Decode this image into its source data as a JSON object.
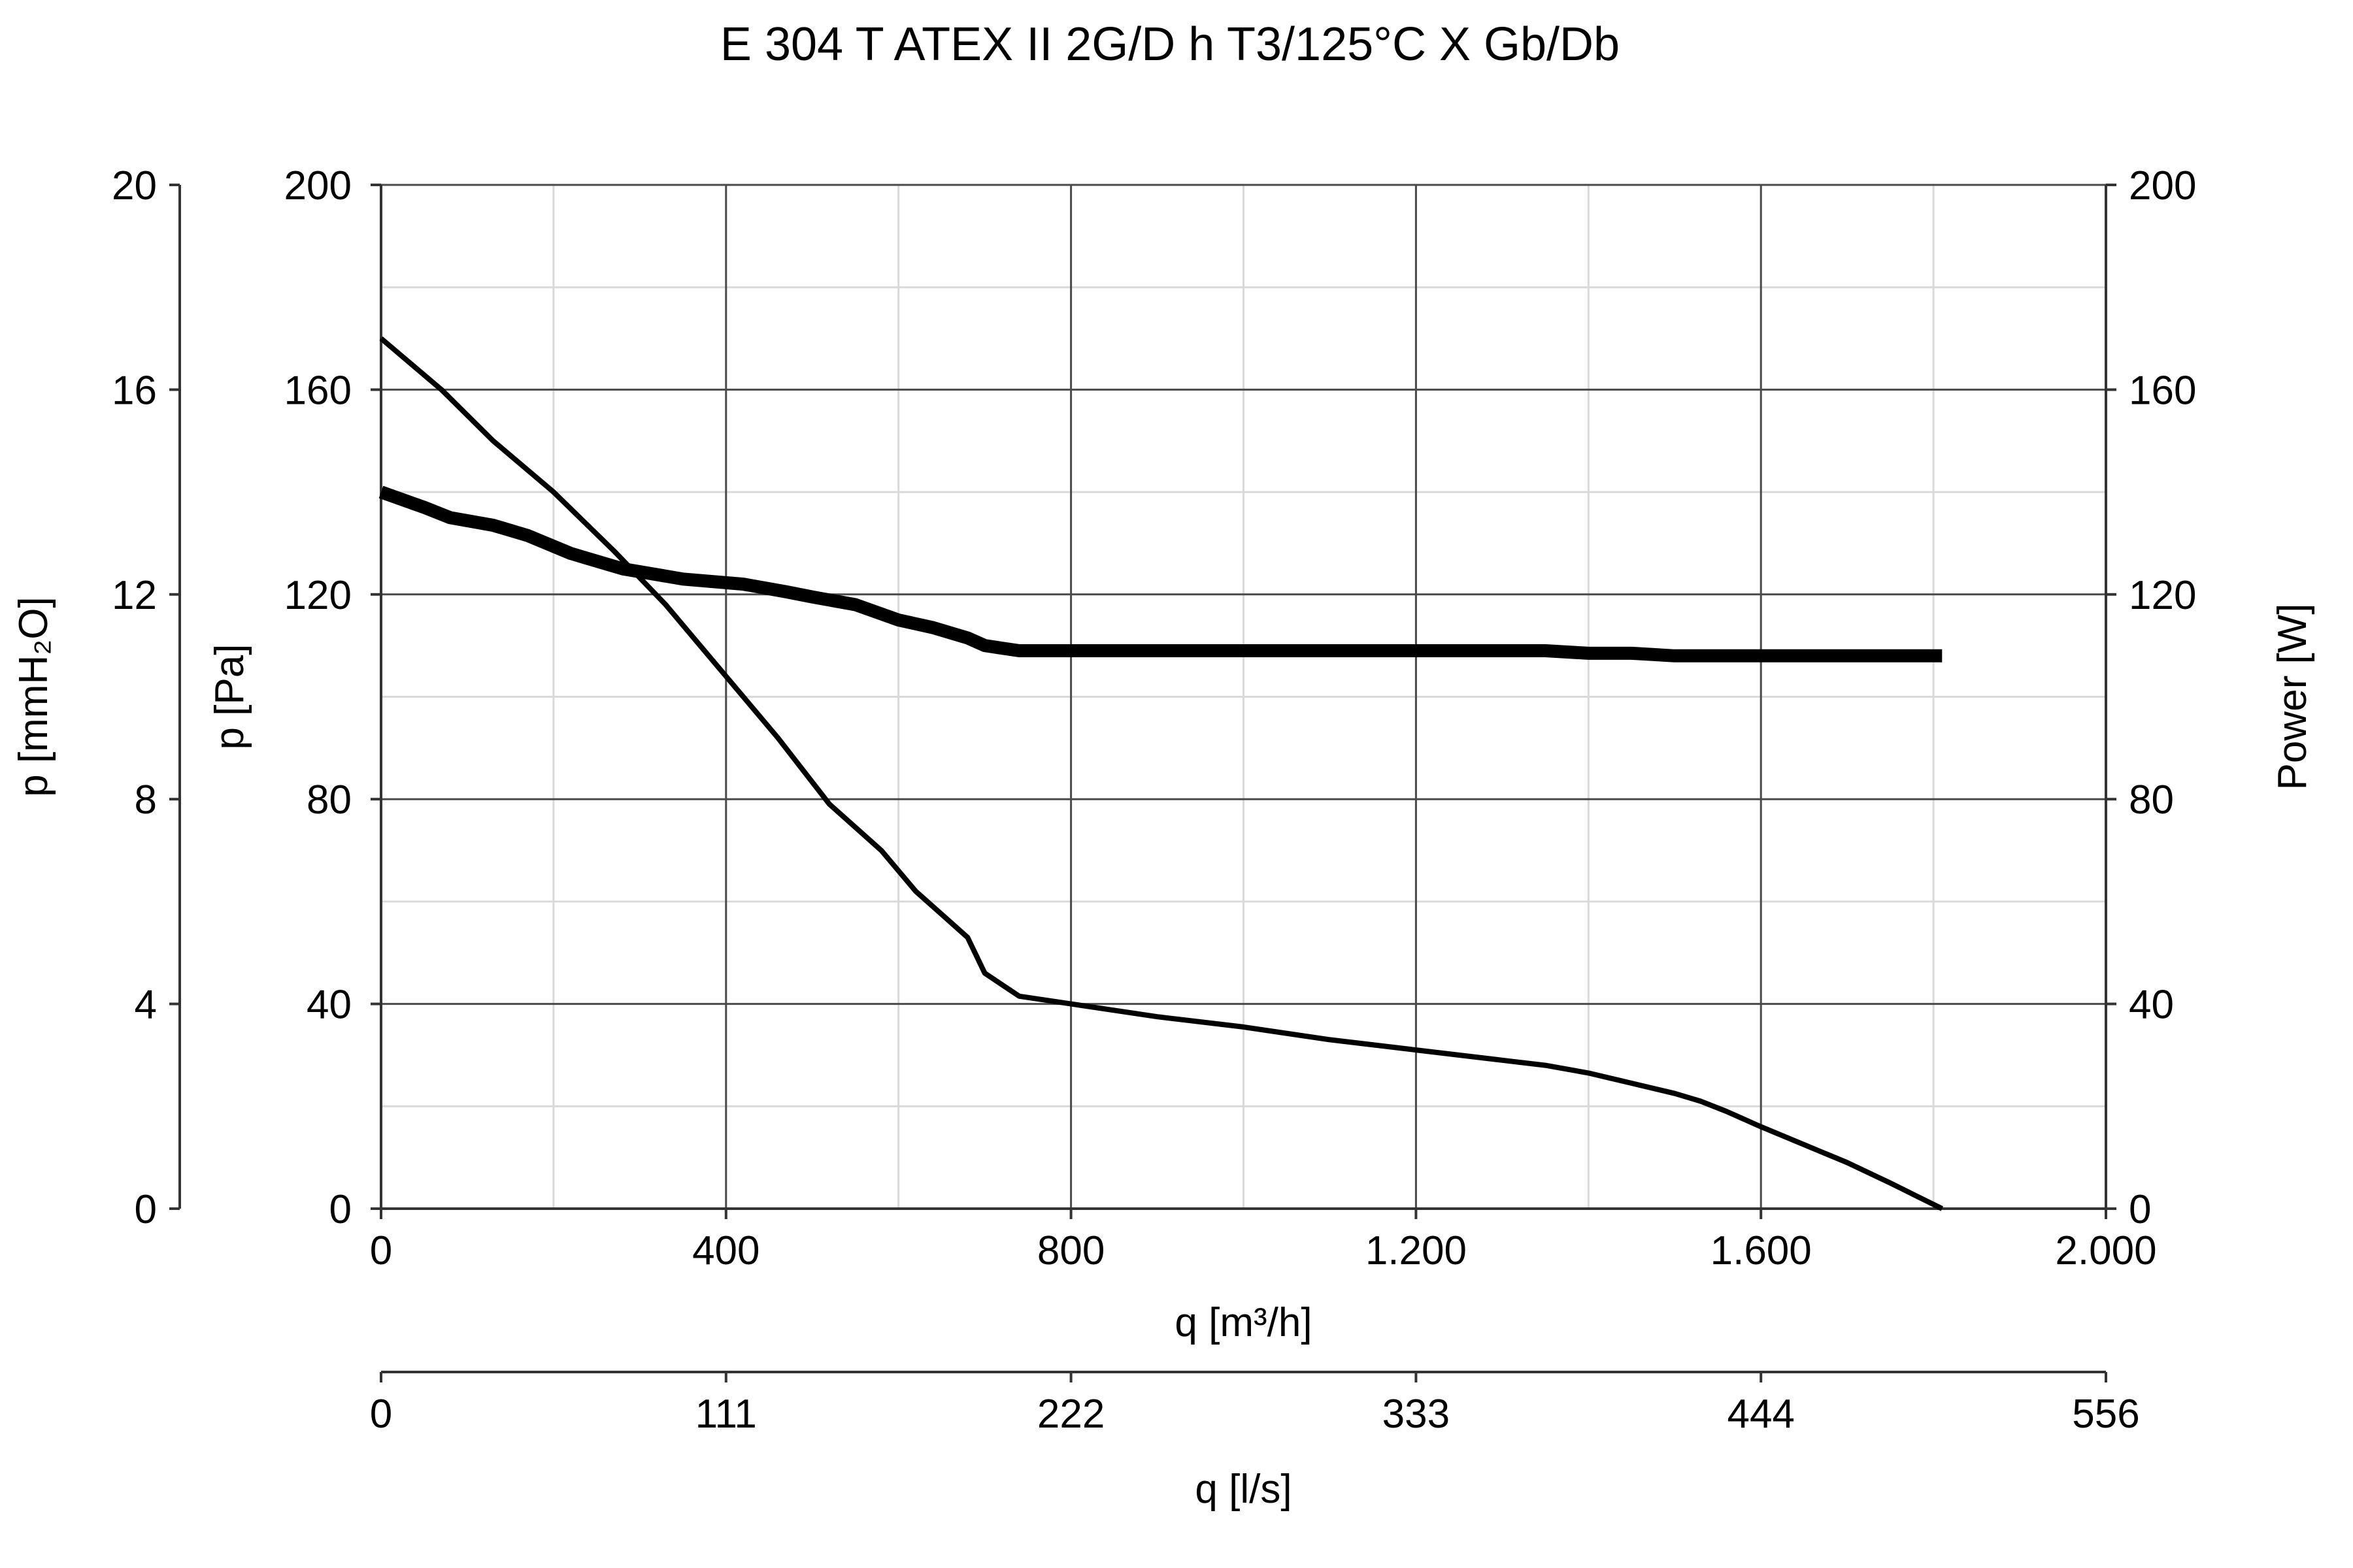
{
  "chart_data": {
    "type": "line",
    "title": "E 304 T ATEX II 2G/D h T3/125°C X Gb/Db",
    "xlabel": "q [m³/h]",
    "xlim": [
      0,
      2000
    ],
    "xticks": [
      0,
      400,
      800,
      1200,
      1600,
      2000
    ],
    "xtick_labels": [
      "0",
      "400",
      "800",
      "1.200",
      "1.600",
      "2.000"
    ],
    "x2label": "q [l/s]",
    "x2tick_labels": [
      "0",
      "111",
      "222",
      "333",
      "444",
      "556"
    ],
    "ylabel": "p [Pa]",
    "ylim": [
      0,
      200
    ],
    "yticks": [
      0,
      40,
      80,
      120,
      160,
      200
    ],
    "ytick_labels": [
      "0",
      "40",
      "80",
      "120",
      "160",
      "200"
    ],
    "y2label": "p [mmH₂O]",
    "y2tick_labels": [
      "0",
      "4",
      "8",
      "12",
      "16",
      "20"
    ],
    "y3label": "Power [W]",
    "y3tick_labels": [
      "0",
      "40",
      "80",
      "120",
      "160",
      "200"
    ],
    "grid": true,
    "minor_grid": true,
    "legend": false,
    "series": [
      {
        "role": "pressure",
        "color": "#000000",
        "x": [
          0,
          70,
          130,
          200,
          270,
          330,
          400,
          460,
          520,
          580,
          620,
          680,
          700,
          740,
          800,
          900,
          1000,
          1100,
          1200,
          1300,
          1350,
          1400,
          1450,
          1500,
          1530,
          1560,
          1600,
          1650,
          1700,
          1750,
          1780,
          1810
        ],
        "y": [
          170,
          160,
          150,
          140,
          128.5,
          118,
          104,
          92,
          79,
          70,
          62,
          53,
          46,
          41.5,
          40,
          37.5,
          35.5,
          33,
          31,
          29,
          28,
          26.5,
          24.5,
          22.5,
          21,
          19,
          16,
          12.5,
          9,
          5,
          2.5,
          0
        ]
      },
      {
        "role": "power",
        "color": "#000000",
        "x": [
          0,
          50,
          80,
          130,
          170,
          220,
          280,
          350,
          420,
          470,
          500,
          550,
          600,
          640,
          680,
          700,
          720,
          740,
          800,
          900,
          1000,
          1100,
          1200,
          1300,
          1350,
          1400,
          1450,
          1500,
          1550,
          1600,
          1650,
          1700,
          1750,
          1810
        ],
        "y": [
          140,
          137,
          135,
          133.5,
          131.5,
          128,
          125,
          123,
          122,
          120.5,
          119.5,
          118,
          115,
          113.5,
          111.5,
          110,
          109.5,
          109,
          109,
          109,
          109,
          109,
          109,
          109,
          109,
          108.5,
          108.5,
          108,
          108,
          108,
          108,
          108,
          108,
          108
        ]
      }
    ]
  }
}
